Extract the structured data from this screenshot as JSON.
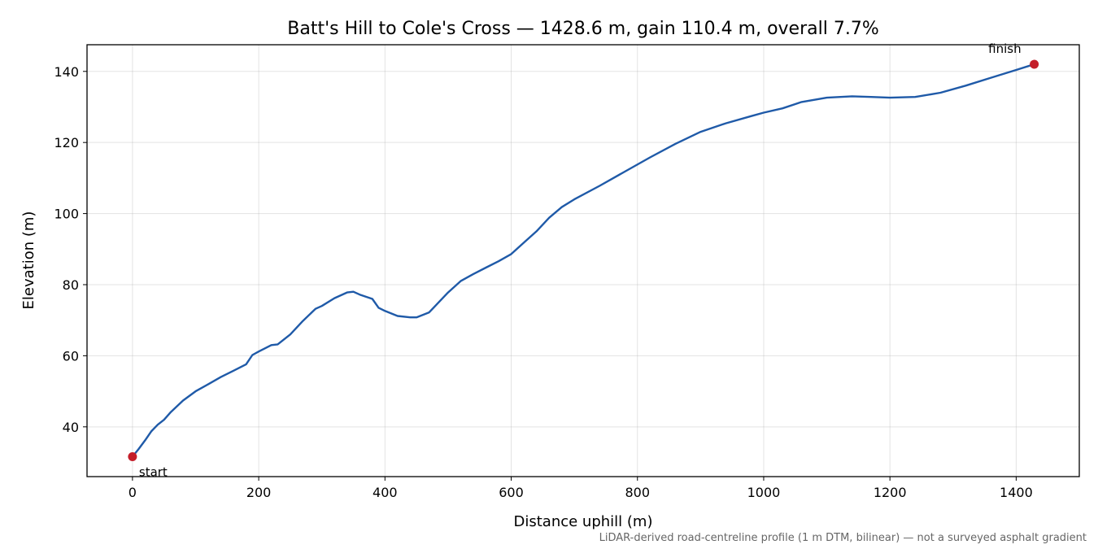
{
  "chart_data": {
    "type": "line",
    "title": "Batt's Hill to Cole's Cross — 1428.6 m, gain 110.4 m, overall 7.7%",
    "xlabel": "Distance uphill (m)",
    "ylabel": "Elevation (m)",
    "xlim": [
      -72,
      1500
    ],
    "ylim": [
      26,
      147.5
    ],
    "xticks": [
      0,
      200,
      400,
      600,
      800,
      1000,
      1200,
      1400
    ],
    "yticks": [
      40,
      60,
      80,
      100,
      120,
      140
    ],
    "grid": true,
    "series": [
      {
        "color": "#1f5aa8",
        "x": [
          0,
          10,
          20,
          30,
          40,
          50,
          60,
          80,
          100,
          120,
          140,
          160,
          180,
          190,
          200,
          220,
          230,
          250,
          270,
          290,
          300,
          320,
          340,
          350,
          360,
          380,
          390,
          400,
          420,
          440,
          450,
          470,
          500,
          520,
          540,
          560,
          580,
          600,
          620,
          640,
          660,
          680,
          700,
          740,
          780,
          820,
          860,
          900,
          940,
          980,
          1000,
          1030,
          1060,
          1100,
          1140,
          1170,
          1200,
          1240,
          1280,
          1320,
          1360,
          1400,
          1428.6
        ],
        "y": [
          31.6,
          33.8,
          36.2,
          38.8,
          40.6,
          42.0,
          44.0,
          47.4,
          50.0,
          52.0,
          54.0,
          55.8,
          57.6,
          60.2,
          61.2,
          63.0,
          63.2,
          66.0,
          69.8,
          73.2,
          74.0,
          76.2,
          77.8,
          78.0,
          77.2,
          76.0,
          73.5,
          72.6,
          71.2,
          70.8,
          70.8,
          72.2,
          77.8,
          81.0,
          83.0,
          84.8,
          86.6,
          88.6,
          91.8,
          95.0,
          98.8,
          101.8,
          104.0,
          107.8,
          111.8,
          115.8,
          119.6,
          123.0,
          125.4,
          127.4,
          128.4,
          129.6,
          131.4,
          132.6,
          133.0,
          132.8,
          132.6,
          132.8,
          134.0,
          136.0,
          138.2,
          140.4,
          142.0
        ]
      }
    ],
    "markers": [
      {
        "label": "start",
        "x": 0,
        "y": 31.6,
        "color": "#c41e2a"
      },
      {
        "label": "finish",
        "x": 1428.6,
        "y": 142.0,
        "color": "#c41e2a"
      }
    ]
  },
  "footnote": "LiDAR-derived road-centreline profile (1 m DTM, bilinear) — not a surveyed asphalt gradient"
}
